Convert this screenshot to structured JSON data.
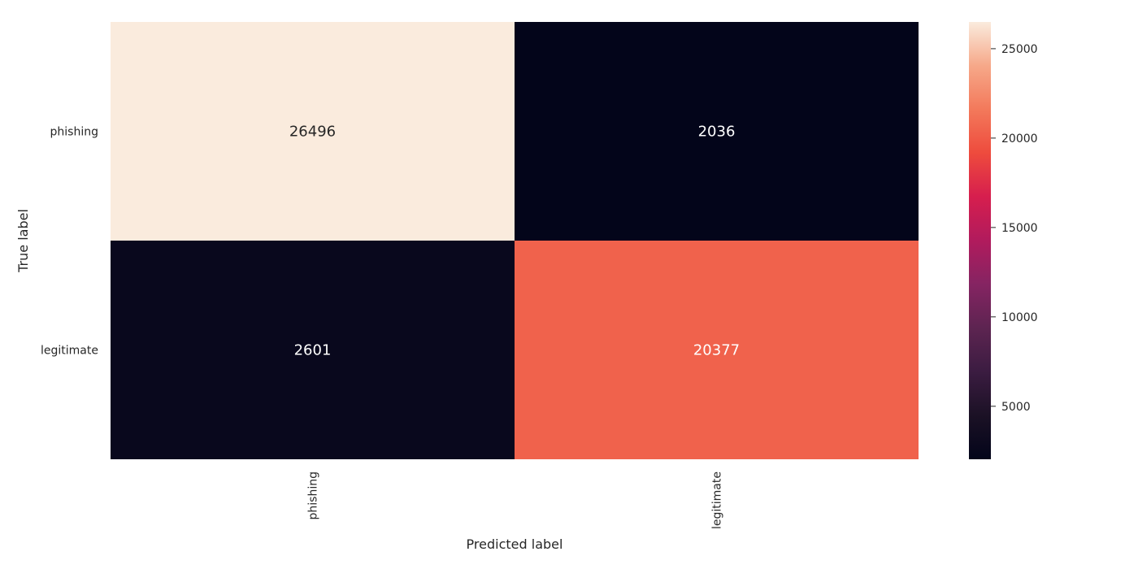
{
  "chart_data": {
    "type": "heatmap",
    "xlabel": "Predicted label",
    "ylabel": "True label",
    "x_categories": [
      "phishing",
      "legitimate"
    ],
    "y_categories": [
      "phishing",
      "legitimate"
    ],
    "values": [
      [
        26496,
        2036
      ],
      [
        2601,
        20377
      ]
    ],
    "colormap": "rocket",
    "colorbar": {
      "min": 2036,
      "max": 26496,
      "ticks": [
        5000,
        10000,
        15000,
        20000,
        25000
      ]
    }
  }
}
